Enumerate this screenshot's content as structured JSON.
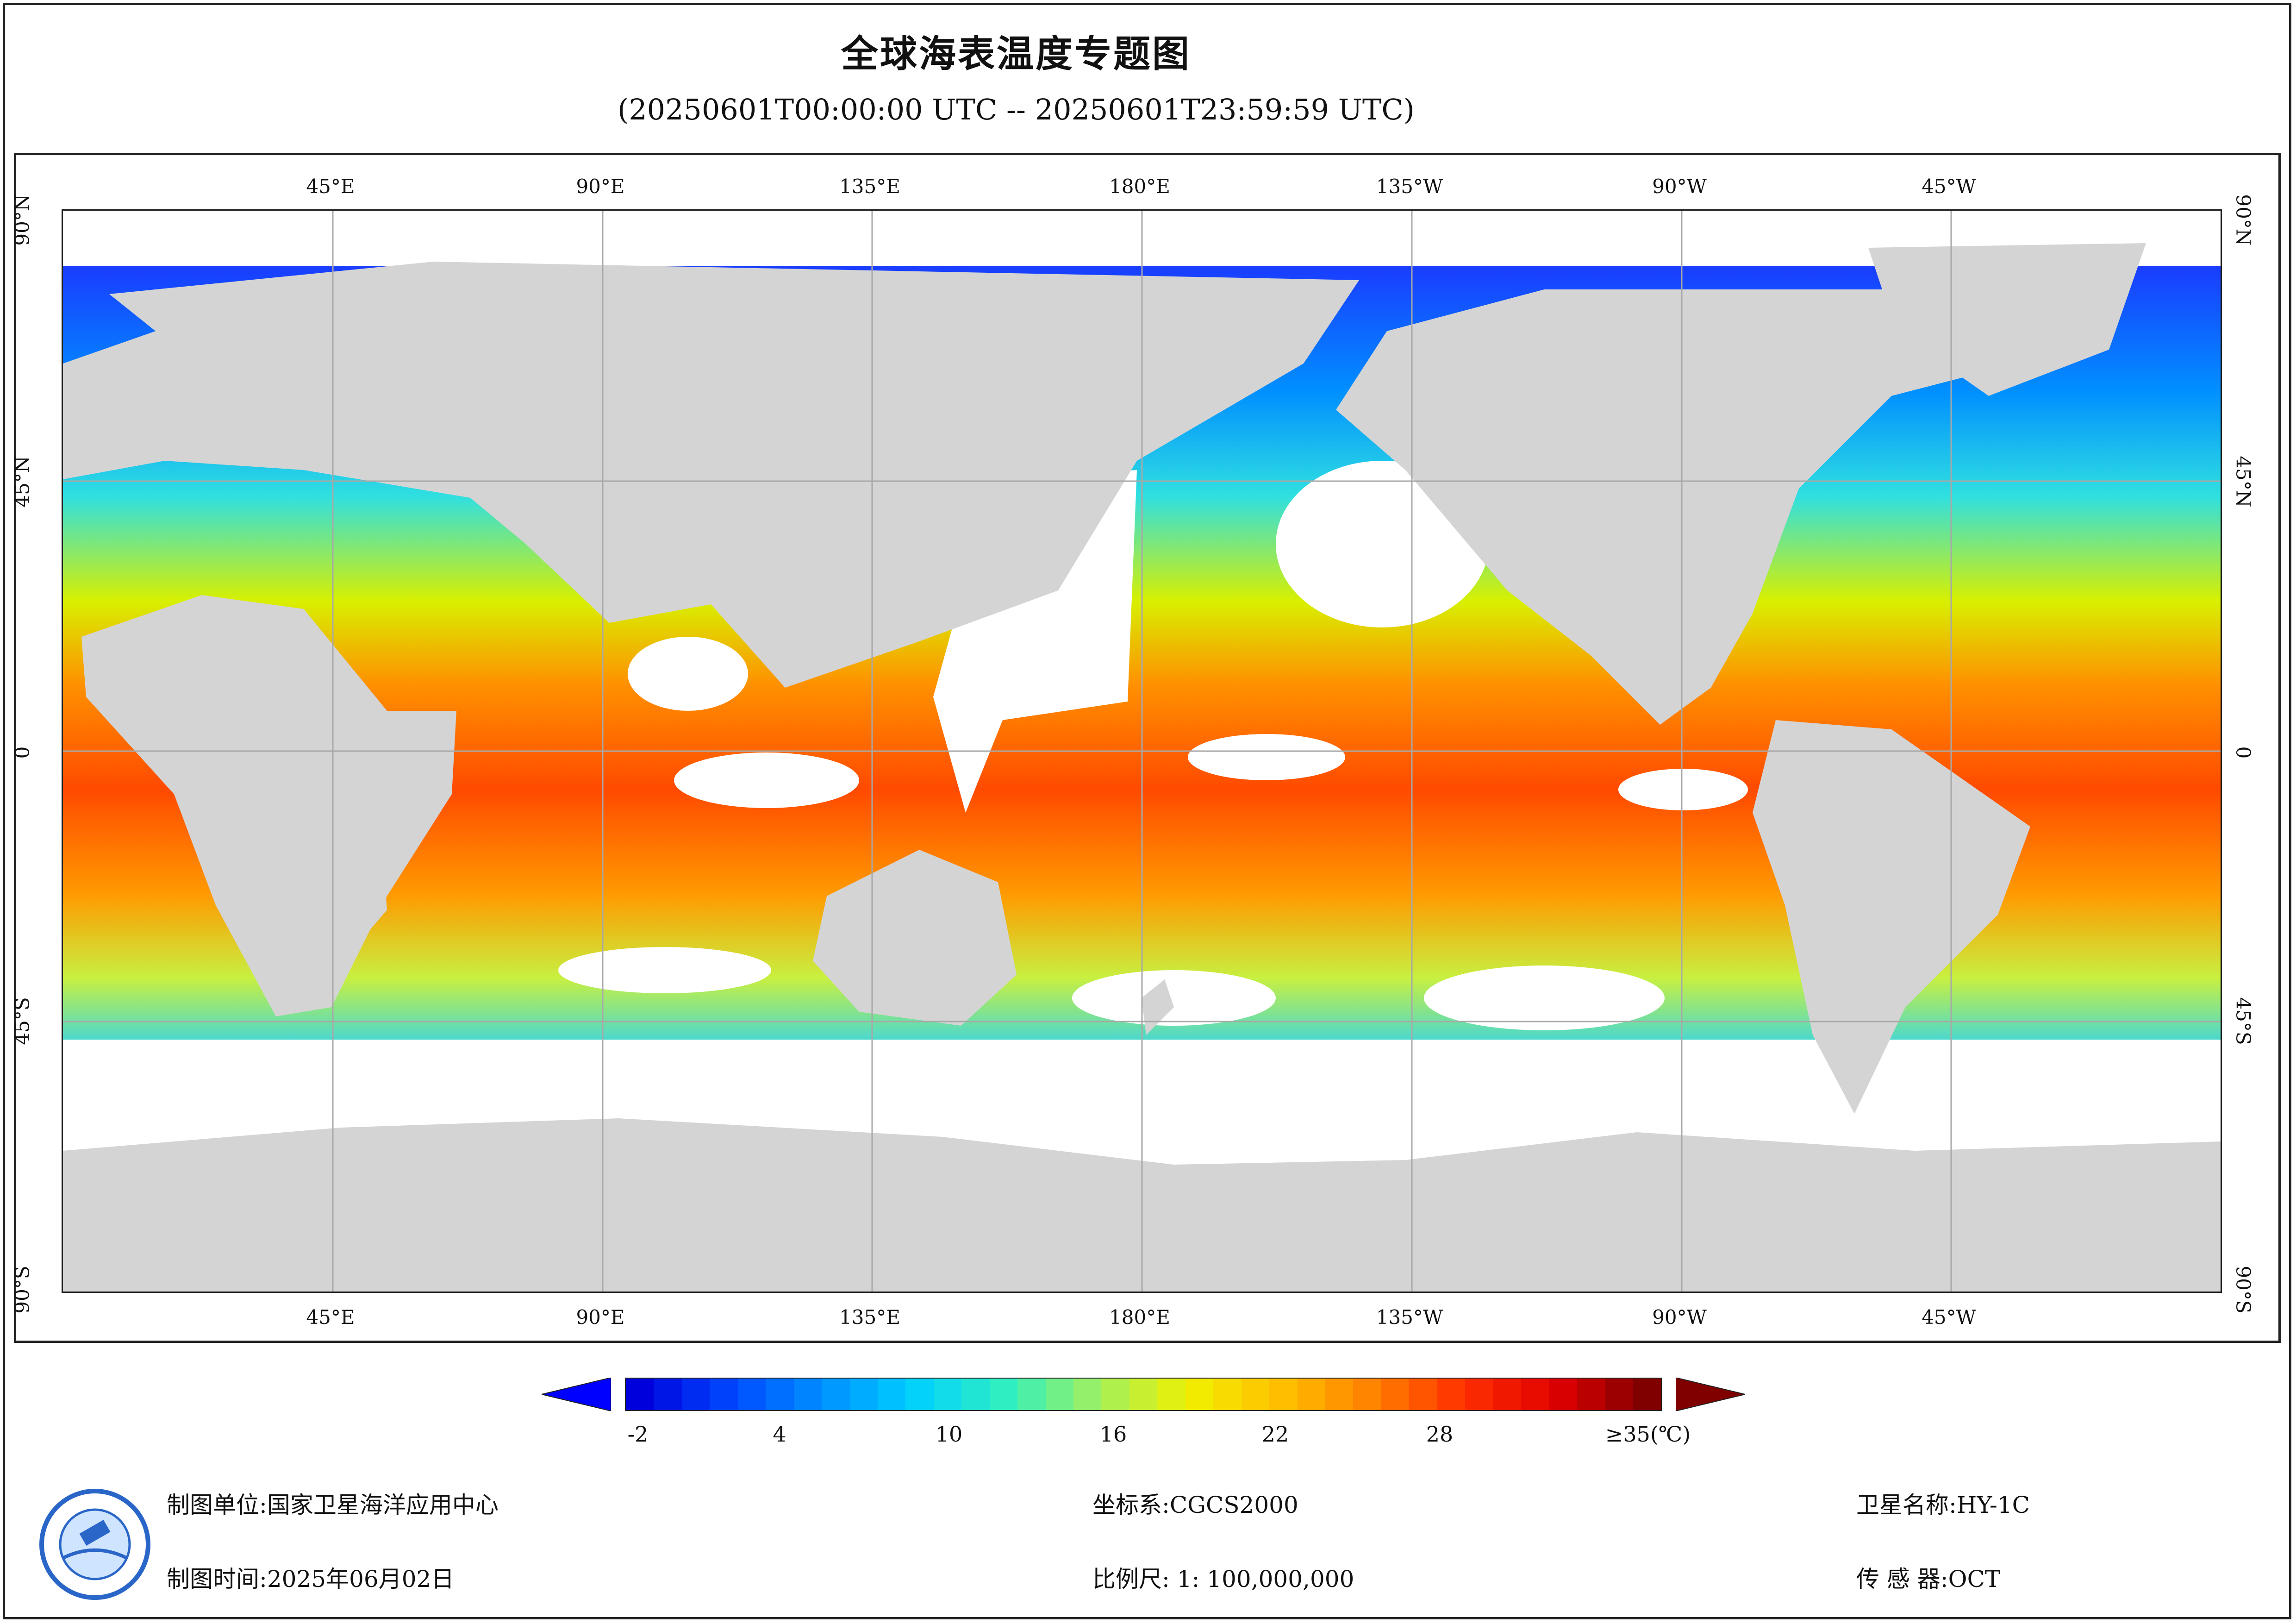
{
  "title": "全球海表温度专题图",
  "subtitle": "(20250601T00:00:00 UTC -- 20250601T23:59:59 UTC)",
  "map": {
    "top_lon_labels": [
      "45°E",
      "90°E",
      "135°E",
      "180°E",
      "135°W",
      "90°W",
      "45°W"
    ],
    "bottom_lon_labels": [
      "45°E",
      "90°E",
      "135°E",
      "180°E",
      "135°W",
      "90°W",
      "45°W"
    ],
    "lat_labels": [
      "90°N",
      "45°N",
      "0",
      "45°S",
      "90°S"
    ],
    "colors": {
      "land": "#d4d4d4",
      "no_data": "#ffffff",
      "grid": "#a8a8a8"
    }
  },
  "colorbar": {
    "ticks": [
      "-2",
      "4",
      "10",
      "16",
      "22",
      "28",
      "≥35(℃)"
    ],
    "stops": [
      "#0000dd",
      "#0048ff",
      "#0090ff",
      "#00d0ff",
      "#30f0c0",
      "#a0f060",
      "#f0f000",
      "#ffc000",
      "#ff8000",
      "#ff3000",
      "#e00000",
      "#800000"
    ],
    "under_color": "#0000ff",
    "over_color": "#800000"
  },
  "footer": {
    "unit": "制图单位:国家卫星海洋应用中心",
    "time": "制图时间:2025年06月02日",
    "coord": "坐标系:CGCS2000",
    "scale": "比例尺: 1: 100,000,000",
    "satellite": "卫星名称:HY-1C",
    "sensor": "传 感 器:OCT"
  },
  "logo": {
    "icon": "nsoas-logo-icon"
  }
}
